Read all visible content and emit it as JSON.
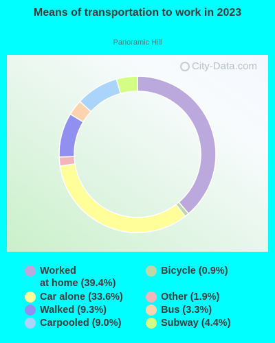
{
  "chart_data": {
    "type": "pie",
    "title": "Means of transportation to work in 2023",
    "subtitle": "Panoramic Hill",
    "slices": [
      {
        "label": "Worked at home",
        "value": 39.4,
        "display": "Worked at home (39.4%)",
        "color": "#bba8dc"
      },
      {
        "label": "Bicycle",
        "value": 0.9,
        "display": "Bicycle (0.9%)",
        "color": "#bfd6a6"
      },
      {
        "label": "Car alone",
        "value": 33.6,
        "display": "Car alone (33.6%)",
        "color": "#fffe98"
      },
      {
        "label": "Other",
        "value": 1.9,
        "display": "Other (1.9%)",
        "color": "#f4b4bb"
      },
      {
        "label": "Walked",
        "value": 9.3,
        "display": "Walked (9.3%)",
        "color": "#9190f0"
      },
      {
        "label": "Bus",
        "value": 3.3,
        "display": "Bus (3.3%)",
        "color": "#fcd3ae"
      },
      {
        "label": "Carpooled",
        "value": 9.0,
        "display": "Carpooled (9.0%)",
        "color": "#aad4fa"
      },
      {
        "label": "Subway",
        "value": 4.4,
        "display": "Subway (4.4%)",
        "color": "#d4fd86"
      }
    ],
    "legend": {
      "position": "bottom",
      "items": [
        {
          "line1": "Worked",
          "line2": "at home (39.4%)",
          "color": "#bba8dc"
        },
        {
          "line1": "Bicycle (0.9%)",
          "color": "#bfd6a6"
        },
        {
          "line1": "Car alone (33.6%)",
          "color": "#fffe98"
        },
        {
          "line1": "Other (1.9%)",
          "color": "#f4b4bb"
        },
        {
          "line1": "Walked (9.3%)",
          "color": "#9190f0"
        },
        {
          "line1": "Bus (3.3%)",
          "color": "#fcd3ae"
        },
        {
          "line1": "Carpooled (9.0%)",
          "color": "#aad4fa"
        },
        {
          "line1": "Subway (4.4%)",
          "color": "#d4fd86"
        }
      ]
    }
  },
  "watermark": "City-Data.com",
  "colors": {
    "background": "#00ffff"
  }
}
